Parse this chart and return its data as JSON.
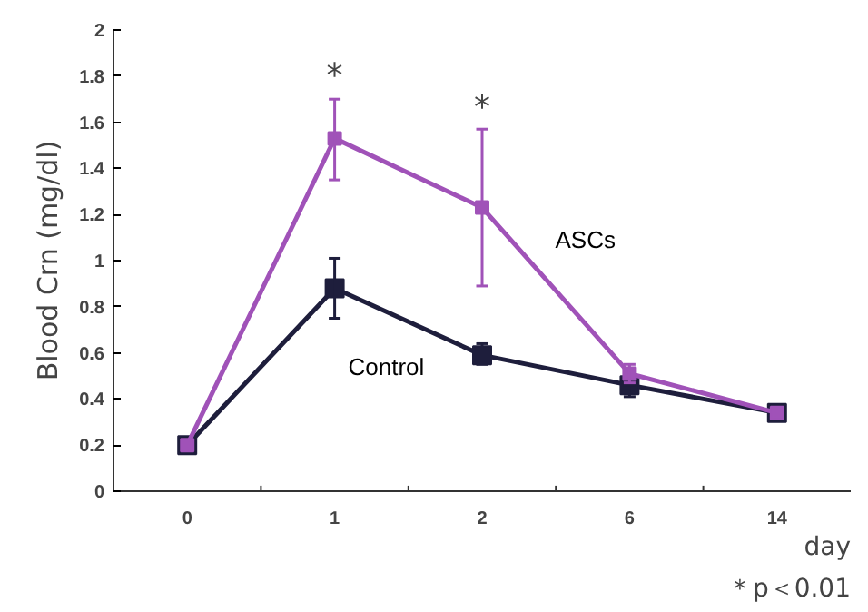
{
  "chart_data": {
    "type": "line",
    "ylabel": "Blood Crn (mg/dl)",
    "xlabel": "day",
    "categories": [
      "0",
      "1",
      "2",
      "6",
      "14"
    ],
    "ylim": [
      0,
      2
    ],
    "yticks": [
      0,
      0.2,
      0.4,
      0.6,
      0.8,
      1,
      1.2,
      1.4,
      1.6,
      1.8,
      2
    ],
    "grid": false,
    "marker": "square",
    "line_style": "solid",
    "series": [
      {
        "name": "ASCs",
        "color": "#a052b8",
        "values": [
          0.2,
          1.53,
          1.23,
          0.51,
          0.34
        ],
        "errors": [
          null,
          [
            1.35,
            1.7
          ],
          [
            0.89,
            1.57
          ],
          [
            0.47,
            0.55
          ],
          null
        ]
      },
      {
        "name": "Control",
        "color": "#1e1e3c",
        "values": [
          0.2,
          0.88,
          0.59,
          0.46,
          0.34
        ],
        "errors": [
          null,
          [
            0.75,
            1.01
          ],
          [
            0.55,
            0.64
          ],
          [
            0.41,
            0.46
          ],
          null
        ]
      }
    ],
    "annotations": [
      "*",
      "*",
      "＊p＜0.01"
    ]
  }
}
